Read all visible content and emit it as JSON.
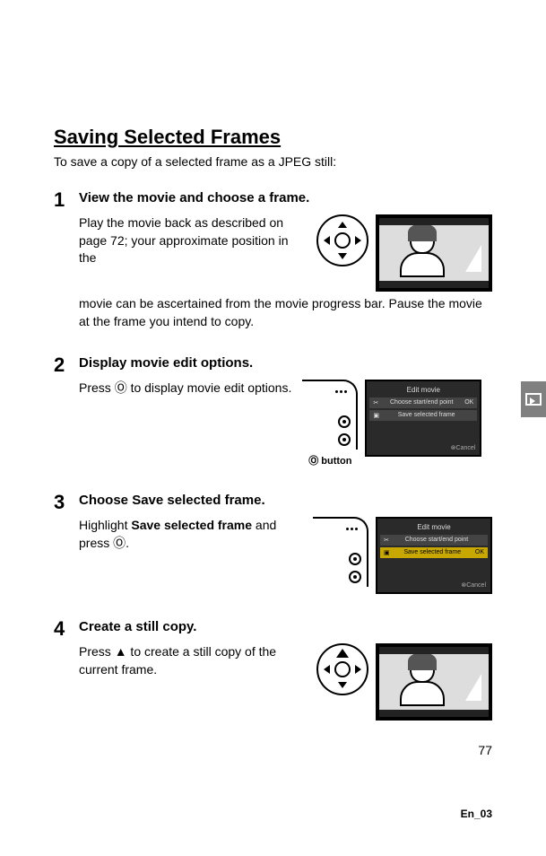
{
  "title": "Saving Selected Frames",
  "intro": "To save a copy of a selected frame as a JPEG still:",
  "steps": [
    {
      "num": "1",
      "head": "View the movie and choose a frame.",
      "text1": "Play the movie back as described on page 72; your approximate position in the ",
      "text2": "movie can be ascertained from the movie progress bar.  Pause the movie at the frame you intend to copy."
    },
    {
      "num": "2",
      "head": "Display movie edit options.",
      "text1_a": "Press ",
      "text1_b": " to display movie edit options.",
      "button_label": "button",
      "menu": {
        "title": "Edit movie",
        "item1": "Choose start/end point",
        "item2": "Save selected frame",
        "ok": "OK",
        "cancel": "Cancel"
      }
    },
    {
      "num": "3",
      "head_a": "Choose ",
      "head_b": "Save selected frame",
      "head_c": ".",
      "text_a": "Highlight ",
      "text_b": "Save selected frame",
      "text_c": " and press ",
      "text_d": ".",
      "menu": {
        "title": "Edit movie",
        "item1": "Choose start/end point",
        "item2": "Save selected frame",
        "ok": "OK",
        "cancel": "Cancel"
      }
    },
    {
      "num": "4",
      "head": "Create a still copy.",
      "text_a": "Press ",
      "text_b": " to create a still copy of the current frame."
    }
  ],
  "ok_symbol": "Ⓞ",
  "up_symbol": "▲",
  "page_number": "77",
  "footer": "En_03"
}
